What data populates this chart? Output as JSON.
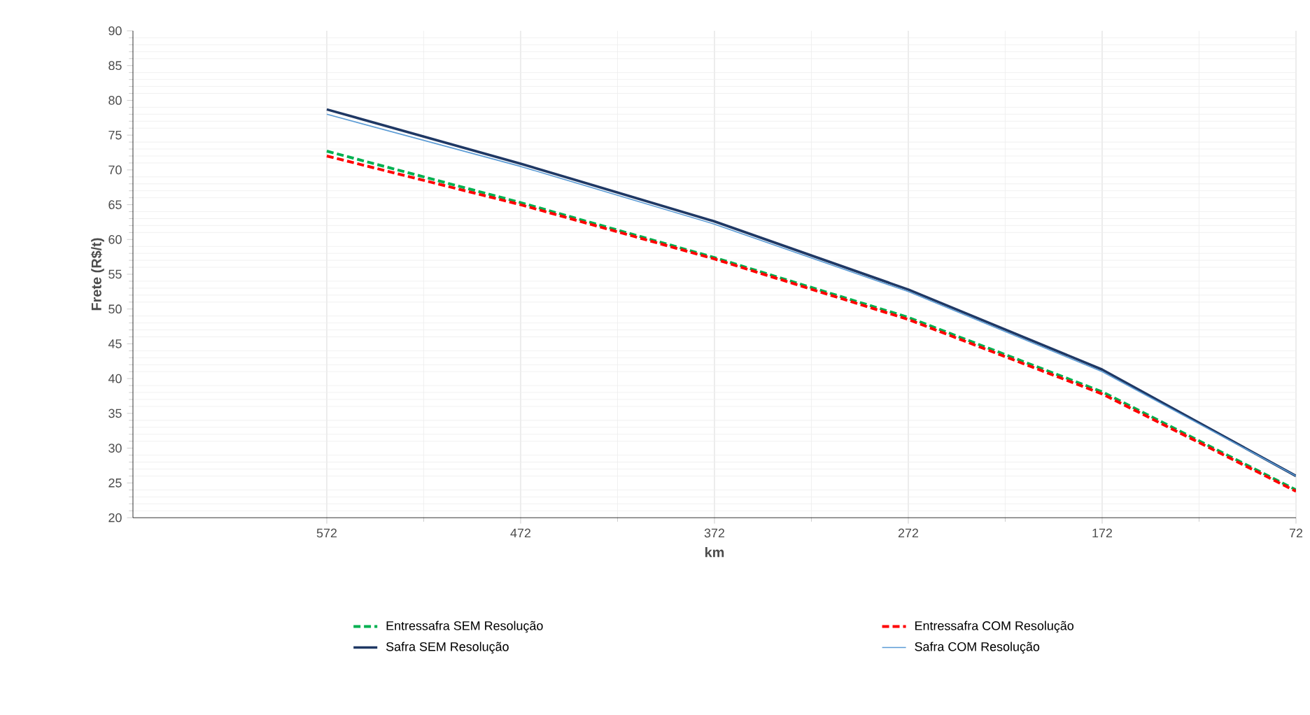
{
  "chart_data": {
    "type": "line",
    "xlabel": "km",
    "ylabel": "Frete (R$/t)",
    "x": [
      572,
      472,
      372,
      272,
      172,
      72
    ],
    "xlim": [
      672,
      72
    ],
    "xticks": [
      572,
      472,
      372,
      272,
      172,
      72
    ],
    "ylim": [
      20,
      90
    ],
    "yticks": [
      20,
      25,
      30,
      35,
      40,
      45,
      50,
      55,
      60,
      65,
      70,
      75,
      80,
      85,
      90
    ],
    "grid": true,
    "legend": "bottom",
    "marker": "none",
    "series": [
      {
        "name": "Entressafra SEM Resolução",
        "color": "#00b050",
        "line_style": "dashed",
        "values": [
          72.7,
          65.3,
          57.4,
          48.8,
          38.1,
          24.0
        ]
      },
      {
        "name": "Entressafra COM Resolução",
        "color": "#ff0000",
        "line_style": "dashed",
        "values": [
          72.0,
          65.0,
          57.2,
          48.5,
          37.8,
          23.8
        ]
      },
      {
        "name": "Safra SEM Resolução",
        "color": "#1f3864",
        "line_style": "solid",
        "values": [
          78.7,
          70.9,
          62.6,
          52.8,
          41.3,
          26.0
        ]
      },
      {
        "name": "Safra COM Resolução",
        "color": "#5b9bd5",
        "line_style": "solid",
        "values": [
          78.0,
          70.5,
          62.2,
          52.5,
          41.0,
          26.0
        ]
      }
    ]
  }
}
